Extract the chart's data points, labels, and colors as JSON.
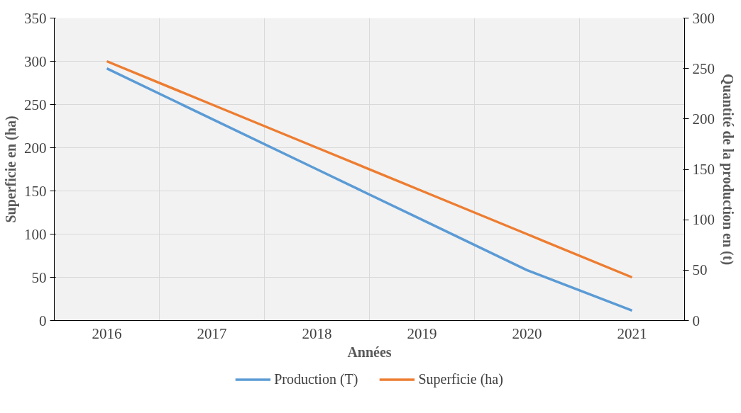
{
  "chart_data": {
    "type": "line",
    "xlabel": "Années",
    "ylabel": "Superficie en (ha)",
    "y2label": "Quantité de la production en (t)",
    "categories": [
      "2016",
      "2017",
      "2018",
      "2019",
      "2020",
      "2021"
    ],
    "series": [
      {
        "name": "Production (T)",
        "color": "#5b9bd5",
        "axis": "y2",
        "values": [
          250,
          200,
          150,
          100,
          50,
          10
        ]
      },
      {
        "name": "Superficie (ha)",
        "color": "#ed7d31",
        "values": [
          300,
          250,
          200,
          150,
          100,
          50
        ]
      }
    ],
    "ylim": [
      0,
      350
    ],
    "yticks": [
      0,
      50,
      100,
      150,
      200,
      250,
      300,
      350
    ],
    "y2lim": [
      0,
      300
    ],
    "y2ticks": [
      0,
      50,
      100,
      150,
      200,
      250,
      300
    ],
    "grid": true,
    "legend": "bottom",
    "marker": "none",
    "line_style": "solid"
  }
}
